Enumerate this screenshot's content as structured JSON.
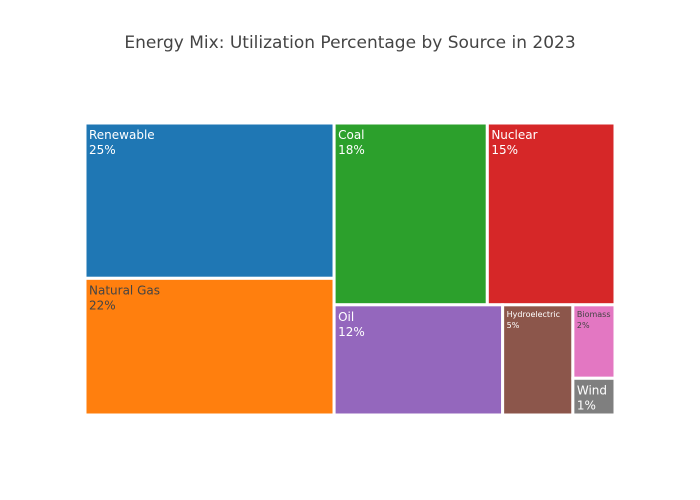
{
  "chart_data": {
    "type": "treemap",
    "title": "Energy Mix: Utilization Percentage by Source in 2023",
    "unit": "%",
    "items": [
      {
        "label": "Renewable",
        "value": 25,
        "display": "25%",
        "color": "#1f77b4",
        "text_color": "#ffffff"
      },
      {
        "label": "Natural Gas",
        "value": 22,
        "display": "22%",
        "color": "#ff7f0e",
        "text_color": "#444444"
      },
      {
        "label": "Coal",
        "value": 18,
        "display": "18%",
        "color": "#2ca02c",
        "text_color": "#ffffff"
      },
      {
        "label": "Nuclear",
        "value": 15,
        "display": "15%",
        "color": "#d62728",
        "text_color": "#ffffff"
      },
      {
        "label": "Oil",
        "value": 12,
        "display": "12%",
        "color": "#9467bd",
        "text_color": "#ffffff"
      },
      {
        "label": "Hydroelectric",
        "value": 5,
        "display": "5%",
        "color": "#8c564b",
        "text_color": "#ffffff"
      },
      {
        "label": "Biomass",
        "value": 2,
        "display": "2%",
        "color": "#e377c2",
        "text_color": "#444444"
      },
      {
        "label": "Wind",
        "value": 1,
        "display": "1%",
        "color": "#7f7f7f",
        "text_color": "#ffffff"
      }
    ]
  }
}
